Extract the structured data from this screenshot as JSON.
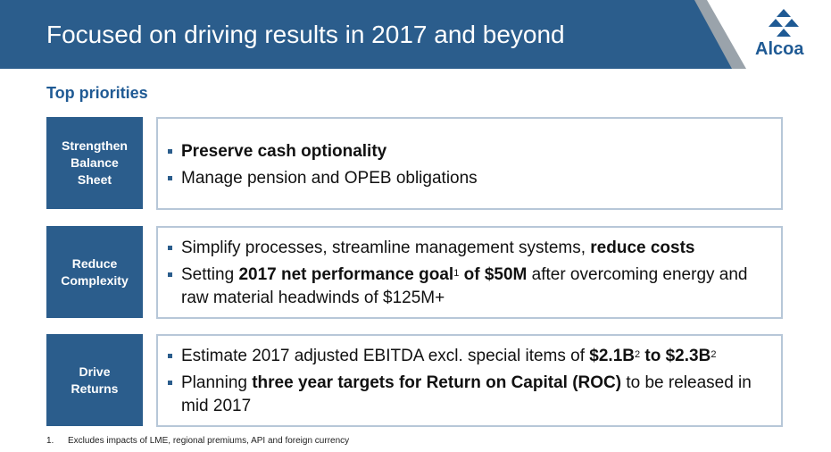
{
  "header": {
    "title": "Focused on driving results in 2017 and beyond",
    "logo_text": "Alcoa",
    "bar_color": "#2b5d8c"
  },
  "section_heading": "Top priorities",
  "rows": [
    {
      "label": "Strengthen\nBalance\nSheet",
      "bullets": [
        {
          "parts": [
            {
              "t": "Preserve cash optionality",
              "b": true
            }
          ]
        },
        {
          "parts": [
            {
              "t": "Manage pension and OPEB obligations"
            }
          ]
        }
      ]
    },
    {
      "label": "Reduce\nComplexity",
      "bullets": [
        {
          "parts": [
            {
              "t": "Simplify processes, streamline management systems, "
            },
            {
              "t": "reduce costs",
              "b": true
            }
          ]
        },
        {
          "parts": [
            {
              "t": "Setting "
            },
            {
              "t": "2017 net performance goal",
              "b": true
            },
            {
              "t": "1",
              "sup": true
            },
            {
              "t": " of $50M",
              "b": true
            },
            {
              "t": " after overcoming energy and raw material headwinds of $125M+"
            }
          ]
        }
      ]
    },
    {
      "label": "Drive\nReturns",
      "bullets": [
        {
          "parts": [
            {
              "t": "Estimate 2017 adjusted EBITDA excl. special items of "
            },
            {
              "t": "$2.1B",
              "b": true
            },
            {
              "t": "2",
              "sup": true
            },
            {
              "t": " to $2.3B",
              "b": true
            },
            {
              "t": "2",
              "sup": true
            }
          ]
        },
        {
          "parts": [
            {
              "t": "Planning "
            },
            {
              "t": "three year targets for Return on Capital (ROC)",
              "b": true
            },
            {
              "t": " to be released in mid 2017"
            }
          ]
        }
      ]
    }
  ],
  "footnotes": [
    {
      "num": "1.",
      "text": "Excludes impacts of LME, regional premiums, API and foreign currency"
    }
  ]
}
